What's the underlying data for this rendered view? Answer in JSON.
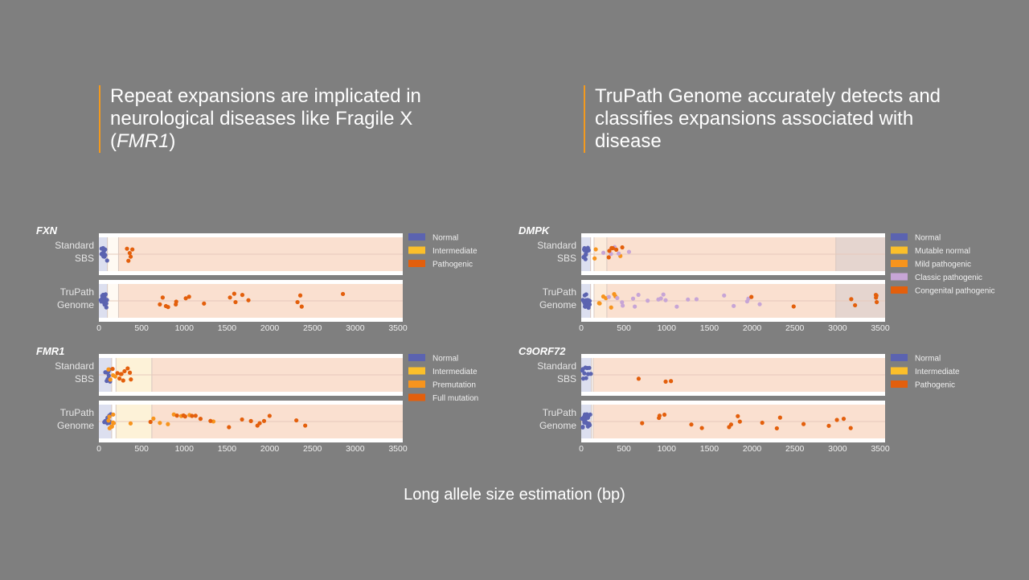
{
  "headlines": {
    "left": {
      "text": "Repeat expansions are implicated in neurological diseases like Fragile X (",
      "italic": "FMR1",
      "tail": ")"
    },
    "right": {
      "text": "TruPath Genome accurately detects and classifies expansions associated with disease"
    }
  },
  "colors": {
    "accent": "#f39a1e",
    "background": "#7f7f7f",
    "normal": "#5b63b0",
    "intermediate": "#fbbf2a",
    "mild": "#f7941d",
    "classic": "#c7a5d6",
    "pathogenic": "#e35f0c"
  },
  "chart_data": [
    {
      "type": "scatter",
      "title": "FXN",
      "xlim": [
        0,
        3500
      ],
      "xticks": [
        "0",
        "500",
        "1000",
        "1500",
        "2000",
        "2500",
        "3000",
        "3500"
      ],
      "rows": [
        "Standard SBS",
        "TruPath Genome"
      ],
      "regions": [
        {
          "name": "Normal",
          "range": [
            0,
            100
          ],
          "fill": "#dcdfef"
        },
        {
          "name": "Intermediate",
          "range": [
            100,
            230
          ],
          "fill": "#fffaf3"
        },
        {
          "name": "Pathogenic",
          "range": [
            230,
            3560
          ],
          "fill": "#fae0d0"
        }
      ],
      "legend": [
        {
          "label": "Normal",
          "color": "#5b63b0"
        },
        {
          "label": "Intermediate",
          "color": "#fbbf2a"
        },
        {
          "label": "Pathogenic",
          "color": "#e35f0c"
        }
      ],
      "series": [
        {
          "row": "Standard SBS",
          "class": "Normal",
          "color": "#5b63b0",
          "x": [
            30,
            35,
            40,
            45,
            50,
            55,
            60,
            65,
            70,
            75,
            80,
            90
          ]
        },
        {
          "row": "Standard SBS",
          "class": "Pathogenic",
          "color": "#e35f0c",
          "x": [
            330,
            350,
            360,
            375,
            385
          ]
        },
        {
          "row": "TruPath Genome",
          "class": "Normal",
          "color": "#5b63b0",
          "x": [
            25,
            30,
            35,
            40,
            45,
            50,
            55,
            60,
            65,
            70,
            75,
            80,
            85,
            90,
            95,
            40,
            55,
            70
          ]
        },
        {
          "row": "TruPath Genome",
          "class": "Pathogenic",
          "color": "#e35f0c",
          "x": [
            719,
            743,
            778,
            805,
            898,
            912,
            1019,
            1057,
            1227,
            1528,
            1586,
            1600,
            1672,
            1745,
            2325,
            2353,
            2377,
            2861
          ]
        }
      ]
    },
    {
      "type": "scatter",
      "title": "DMPK",
      "xlim": [
        0,
        3500
      ],
      "xticks": [
        "0",
        "500",
        "1000",
        "1500",
        "2000",
        "2500",
        "3000",
        "3500"
      ],
      "rows": [
        "Standard SBS",
        "TruPath Genome"
      ],
      "regions": [
        {
          "name": "Normal",
          "range": [
            0,
            110
          ],
          "fill": "#dcdfef"
        },
        {
          "name": "Mutable normal",
          "range": [
            110,
            150
          ],
          "fill": "#ffffff"
        },
        {
          "name": "Mild pathogenic",
          "range": [
            150,
            300
          ],
          "fill": "#fcebdb"
        },
        {
          "name": "Classic pathogenic",
          "range": [
            300,
            2980
          ],
          "fill": "#fae0d0"
        },
        {
          "name": "Congenital pathogenic",
          "range": [
            2980,
            3560
          ],
          "fill": "#e5d5cf"
        }
      ],
      "legend": [
        {
          "label": "Normal",
          "color": "#5b63b0"
        },
        {
          "label": "Mutable normal",
          "color": "#fbbf2a"
        },
        {
          "label": "Mild pathogenic",
          "color": "#f7941d"
        },
        {
          "label": "Classic pathogenic",
          "color": "#c7a5d6"
        },
        {
          "label": "Congenital pathogenic",
          "color": "#e35f0c"
        }
      ],
      "series": [
        {
          "row": "Standard SBS",
          "class": "Normal",
          "color": "#5b63b0",
          "x": [
            25,
            30,
            35,
            40,
            45,
            50,
            55,
            60,
            70,
            80,
            90
          ]
        },
        {
          "row": "Standard SBS",
          "class": "Mild pathogenic",
          "color": "#f7941d",
          "x": [
            162,
            177,
            464
          ]
        },
        {
          "row": "Standard SBS",
          "class": "Classic pathogenic",
          "color": "#c7a5d6",
          "x": [
            265,
            350,
            387,
            435,
            553
          ]
        },
        {
          "row": "Standard SBS",
          "class": "Congenital pathogenic",
          "color": "#e35f0c",
          "x": [
            320,
            331,
            350,
            376,
            413,
            479
          ]
        },
        {
          "row": "TruPath Genome",
          "class": "Normal",
          "color": "#5b63b0",
          "x": [
            20,
            25,
            30,
            35,
            40,
            45,
            50,
            55,
            60,
            65,
            70,
            75,
            80,
            85,
            90,
            95,
            100,
            40,
            60,
            80
          ]
        },
        {
          "row": "TruPath Genome",
          "class": "Mild pathogenic",
          "color": "#f7941d",
          "x": [
            214,
            221,
            258,
            295,
            350,
            387,
            398
          ]
        },
        {
          "row": "TruPath Genome",
          "class": "Classic pathogenic",
          "color": "#c7a5d6",
          "x": [
            320,
            416,
            479,
            490,
            608,
            626,
            674,
            781,
            903,
            940,
            958,
            987,
            1124,
            1253,
            1356,
            1669,
            1791,
            1945,
            1960,
            2089
          ]
        },
        {
          "row": "TruPath Genome",
          "class": "Congenital pathogenic",
          "color": "#e35f0c",
          "x": [
            1990,
            2480,
            3154,
            3206,
            3452,
            3452,
            3452,
            3452
          ]
        }
      ]
    },
    {
      "type": "scatter",
      "title": "FMR1",
      "xlim": [
        0,
        3500
      ],
      "xticks": [
        "0",
        "500",
        "1000",
        "1500",
        "2000",
        "2500",
        "3000",
        "3500"
      ],
      "rows": [
        "Standard SBS",
        "TruPath Genome"
      ],
      "regions": [
        {
          "name": "Normal",
          "range": [
            0,
            150
          ],
          "fill": "#dcdfef"
        },
        {
          "name": "Intermediate",
          "range": [
            150,
            200
          ],
          "fill": "#ffffff"
        },
        {
          "name": "Premutation",
          "range": [
            200,
            620
          ],
          "fill": "#fdf2d8"
        },
        {
          "name": "Full mutation",
          "range": [
            620,
            3560
          ],
          "fill": "#fae0d0"
        }
      ],
      "legend": [
        {
          "label": "Normal",
          "color": "#5b63b0"
        },
        {
          "label": "Intermediate",
          "color": "#fbbf2a"
        },
        {
          "label": "Premutation",
          "color": "#f7941d"
        },
        {
          "label": "Full mutation",
          "color": "#e35f0c"
        }
      ],
      "series": [
        {
          "row": "Standard SBS",
          "class": "Normal",
          "color": "#5b63b0",
          "x": [
            80,
            90,
            100,
            110,
            120,
            130,
            95,
            115
          ]
        },
        {
          "row": "Standard SBS",
          "class": "Premutation",
          "color": "#f7941d",
          "x": [
            114,
            131,
            166,
            193
          ]
        },
        {
          "row": "Standard SBS",
          "class": "Full mutation",
          "color": "#e35f0c",
          "x": [
            166,
            211,
            235,
            252,
            270,
            287,
            304,
            339,
            356,
            373
          ]
        },
        {
          "row": "TruPath Genome",
          "class": "Normal",
          "color": "#5b63b0",
          "x": [
            70,
            80,
            90,
            100,
            110,
            120,
            130,
            140,
            85,
            105,
            125
          ]
        },
        {
          "row": "TruPath Genome",
          "class": "Premutation",
          "color": "#f7941d",
          "x": [
            110,
            120,
            130,
            140,
            150,
            160,
            170,
            180,
            373,
            632,
            719,
            805,
            881,
            967,
            1064,
            1340
          ]
        },
        {
          "row": "TruPath Genome",
          "class": "Full mutation",
          "color": "#e35f0c",
          "x": [
            598,
            916,
            995,
            1012,
            1092,
            1133,
            1185,
            1306,
            1520,
            1672,
            1783,
            1859,
            1883,
            1928,
            1998,
            2315,
            2412
          ]
        }
      ]
    },
    {
      "type": "scatter",
      "title": "C9ORF72",
      "xlim": [
        0,
        3500
      ],
      "xticks": [
        "0",
        "500",
        "1000",
        "1500",
        "2000",
        "2500",
        "3000",
        "3500"
      ],
      "rows": [
        "Standard SBS",
        "TruPath Genome"
      ],
      "regions": [
        {
          "name": "Normal",
          "range": [
            0,
            120
          ],
          "fill": "#dcdfef"
        },
        {
          "name": "Intermediate",
          "range": [
            120,
            140
          ],
          "fill": "#ffffff"
        },
        {
          "name": "Pathogenic",
          "range": [
            140,
            3560
          ],
          "fill": "#fae0d0"
        }
      ],
      "legend": [
        {
          "label": "Normal",
          "color": "#5b63b0"
        },
        {
          "label": "Intermediate",
          "color": "#fbbf2a"
        },
        {
          "label": "Pathogenic",
          "color": "#e35f0c"
        }
      ],
      "series": [
        {
          "row": "Standard SBS",
          "class": "Normal",
          "color": "#5b63b0",
          "x": [
            10,
            20,
            30,
            40,
            50,
            60,
            70,
            80,
            90,
            110
          ]
        },
        {
          "row": "Standard SBS",
          "class": "Pathogenic",
          "color": "#e35f0c",
          "x": [
            678,
            984,
            1054
          ]
        },
        {
          "row": "TruPath Genome",
          "class": "Normal",
          "color": "#5b63b0",
          "x": [
            10,
            15,
            20,
            25,
            30,
            35,
            40,
            45,
            50,
            55,
            60,
            65,
            70,
            75,
            80,
            85,
            90,
            95,
            100,
            110,
            30,
            50,
            70
          ]
        },
        {
          "row": "TruPath Genome",
          "class": "Pathogenic",
          "color": "#e35f0c",
          "x": [
            718,
            910,
            917,
            973,
            1286,
            1415,
            1728,
            1761,
            1835,
            1853,
            2115,
            2284,
            2332,
            2605,
            2900,
            2996,
            3066,
            3161
          ]
        }
      ]
    }
  ],
  "xlabel": "Long allele size estimation (bp)"
}
